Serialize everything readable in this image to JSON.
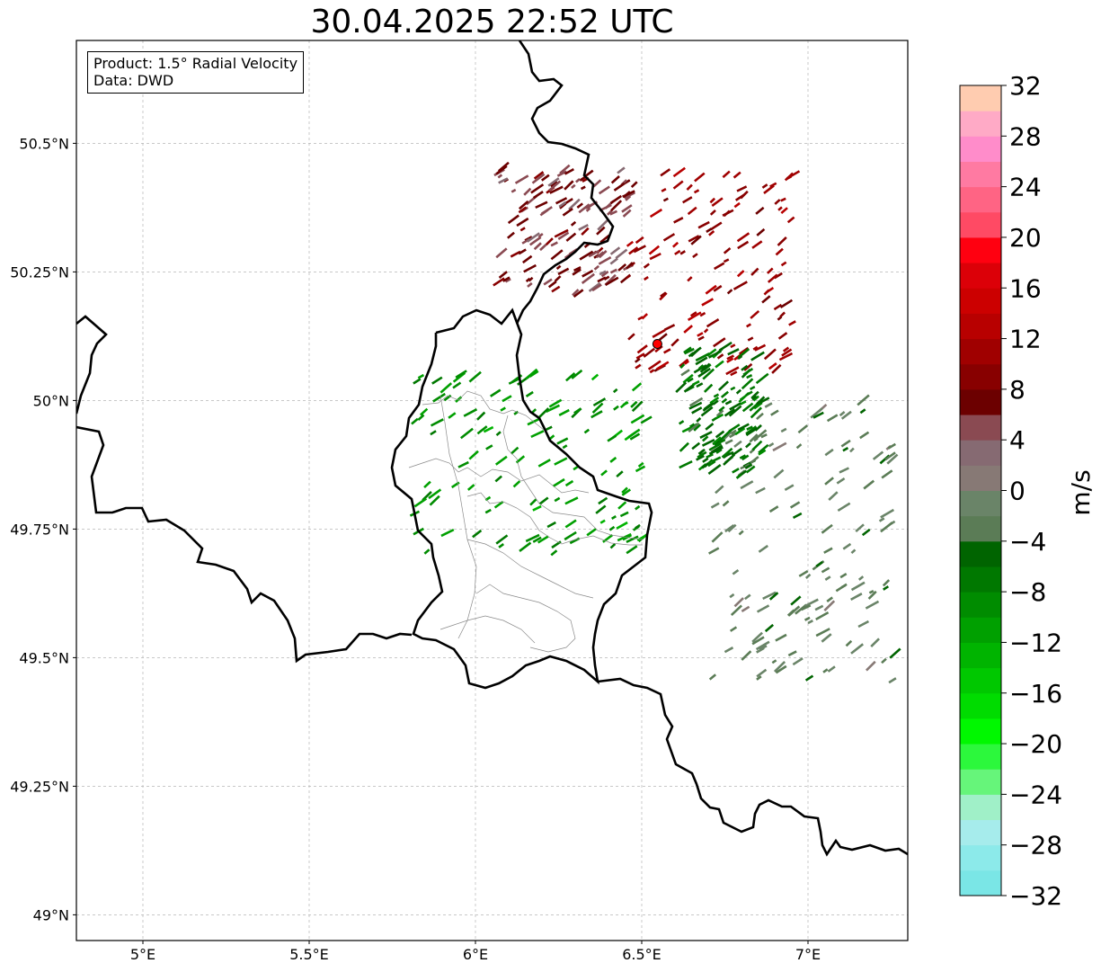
{
  "map": {
    "title": "30.04.2025 22:52 UTC",
    "info": {
      "product": "Product: 1.5° Radial Velocity",
      "source": "Data: DWD"
    },
    "lon_range": [
      4.8,
      7.3
    ],
    "lat_range": [
      48.95,
      50.7
    ],
    "lon_ticks": [
      {
        "v": 5.0,
        "label": "5°E"
      },
      {
        "v": 5.5,
        "label": "5.5°E"
      },
      {
        "v": 6.0,
        "label": "6°E"
      },
      {
        "v": 6.5,
        "label": "6.5°E"
      },
      {
        "v": 7.0,
        "label": "7°E"
      }
    ],
    "lat_ticks": [
      {
        "v": 50.5,
        "label": "50.5°N"
      },
      {
        "v": 50.25,
        "label": "50.25°N"
      },
      {
        "v": 50.0,
        "label": "50°N"
      },
      {
        "v": 49.75,
        "label": "49.75°N"
      },
      {
        "v": 49.5,
        "label": "49.5°N"
      },
      {
        "v": 49.25,
        "label": "49.25°N"
      },
      {
        "v": 49.0,
        "label": "49°N"
      }
    ],
    "gridlines": true,
    "radar_site": {
      "lon": 6.547,
      "lat": 50.11,
      "color": "#ff0000"
    }
  },
  "colorbar": {
    "label": "m/s",
    "min": -32,
    "max": 32,
    "tick_labels": [
      "−32",
      "−28",
      "−24",
      "−20",
      "−16",
      "−12",
      "−8",
      "−4",
      "0",
      "4",
      "8",
      "12",
      "16",
      "20",
      "24",
      "28",
      "32"
    ],
    "colors": [
      "#7ae6e6",
      "#8ceaea",
      "#a6ecec",
      "#a0f0c8",
      "#66f57a",
      "#2cf83c",
      "#00f800",
      "#00dc00",
      "#00c800",
      "#00b400",
      "#00a000",
      "#008c00",
      "#007800",
      "#006400",
      "#5b7c56",
      "#6a8468",
      "#877975",
      "#866a72",
      "#8a4a52",
      "#6c0000",
      "#880000",
      "#a00000",
      "#b80000",
      "#cc0000",
      "#dc0008",
      "#ff0010",
      "#ff4a64",
      "#ff6484",
      "#ff7aa2",
      "#ff8cca",
      "#ffaac6",
      "#ffccb0"
    ]
  },
  "chart_data": {
    "type": "map",
    "title": "30.04.2025 22:52 UTC",
    "product": "1.5° Radial Velocity",
    "source": "DWD",
    "units": "m/s",
    "scale_range": [
      -32,
      32
    ],
    "regions": [
      {
        "velocity_ms": 6,
        "area": [
          6.05,
          6.45,
          50.2,
          50.45
        ],
        "lons": [
          6.05,
          6.15,
          6.25,
          6.35,
          6.45
        ],
        "lats": [
          50.25,
          50.3,
          50.35,
          50.4,
          50.45
        ]
      },
      {
        "velocity_ms": 10,
        "area": [
          6.45,
          6.95,
          50.05,
          50.45
        ],
        "lons": [
          6.5,
          6.6,
          6.7,
          6.8,
          6.9
        ],
        "lats": [
          50.1,
          50.2,
          50.3,
          50.35,
          50.4
        ]
      },
      {
        "velocity_ms": -2,
        "area": [
          6.7,
          7.25,
          49.45,
          50.0
        ],
        "lons": [
          6.75,
          6.85,
          6.95,
          7.05,
          7.15
        ],
        "lats": [
          49.55,
          49.65,
          49.75,
          49.85,
          49.95
        ]
      },
      {
        "velocity_ms": -10,
        "area": [
          5.8,
          6.5,
          49.7,
          50.05
        ],
        "lons": [
          5.9,
          6.0,
          6.1,
          6.2,
          6.3
        ],
        "lats": [
          49.8,
          49.85,
          49.9,
          49.95,
          50.0
        ]
      },
      {
        "velocity_ms": -6,
        "area": [
          6.6,
          6.85,
          49.85,
          50.1
        ],
        "lons": [
          6.65,
          6.75,
          6.85
        ],
        "lats": [
          49.9,
          50.0,
          50.05
        ]
      }
    ]
  }
}
